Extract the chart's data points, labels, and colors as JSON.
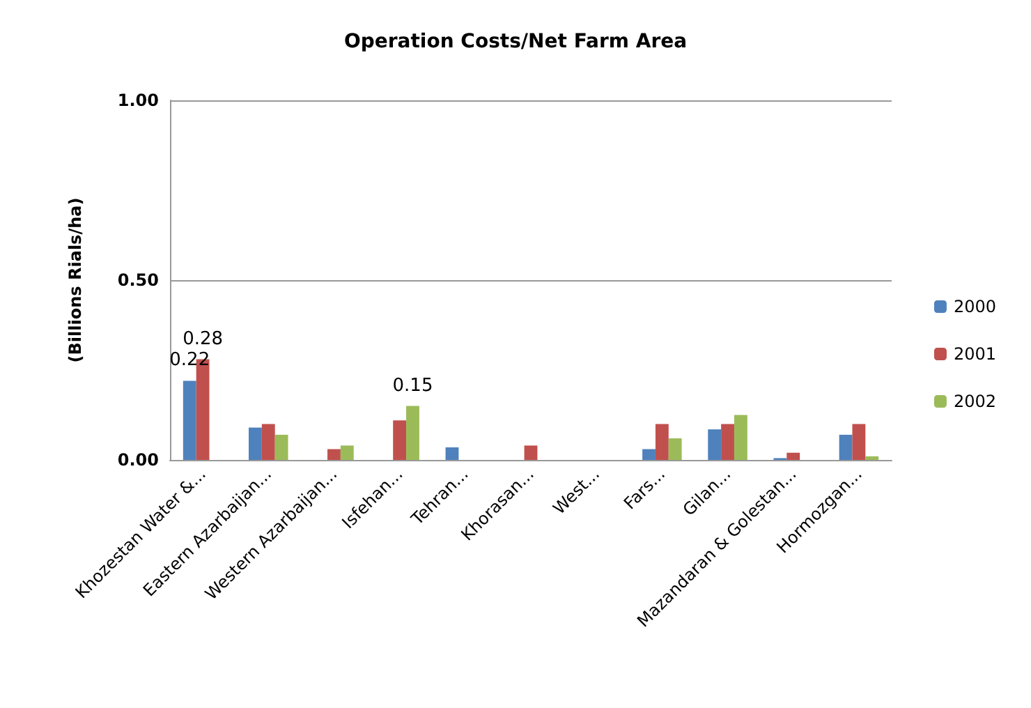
{
  "chart_data": {
    "type": "bar",
    "title": "Operation Costs/Net Farm Area",
    "ylabel": "(Billions Rials/ha)",
    "categories": [
      "Khozestan Water &...",
      "Eastern Azarbaijan...",
      "Western Azarbaijan...",
      "Isfehan...",
      "Tehran...",
      "Khorasan...",
      "West...",
      "Fars...",
      "Gilan...",
      "Mazandaran & Golestan...",
      "Hormozgan..."
    ],
    "series": [
      {
        "name": "2000",
        "color": "#4f81bd",
        "values": [
          0.22,
          0.09,
          0,
          0,
          0.035,
          0,
          0,
          0.03,
          0.085,
          0.005,
          0.07
        ],
        "value_labels": [
          "0.22",
          null,
          null,
          null,
          null,
          null,
          null,
          null,
          null,
          null,
          null
        ]
      },
      {
        "name": "2001",
        "color": "#c0504d",
        "values": [
          0.28,
          0.1,
          0.03,
          0.11,
          0,
          0.04,
          0,
          0.1,
          0.1,
          0.02,
          0.1
        ],
        "value_labels": [
          "0.28",
          null,
          null,
          null,
          null,
          null,
          null,
          null,
          null,
          null,
          null
        ]
      },
      {
        "name": "2002",
        "color": "#9bbb59",
        "values": [
          0,
          0.07,
          0.04,
          0.15,
          0,
          0,
          0,
          0.06,
          0.125,
          0,
          0.01
        ],
        "value_labels": [
          null,
          null,
          null,
          "0.15",
          null,
          null,
          null,
          null,
          null,
          null,
          null
        ]
      }
    ],
    "ylim": [
      0,
      1
    ],
    "yticks": [
      {
        "value": 0,
        "label": "0.00"
      },
      {
        "value": 0.5,
        "label": "0.50"
      },
      {
        "value": 1,
        "label": "1.00"
      }
    ],
    "grid": "y",
    "legend": "right"
  }
}
